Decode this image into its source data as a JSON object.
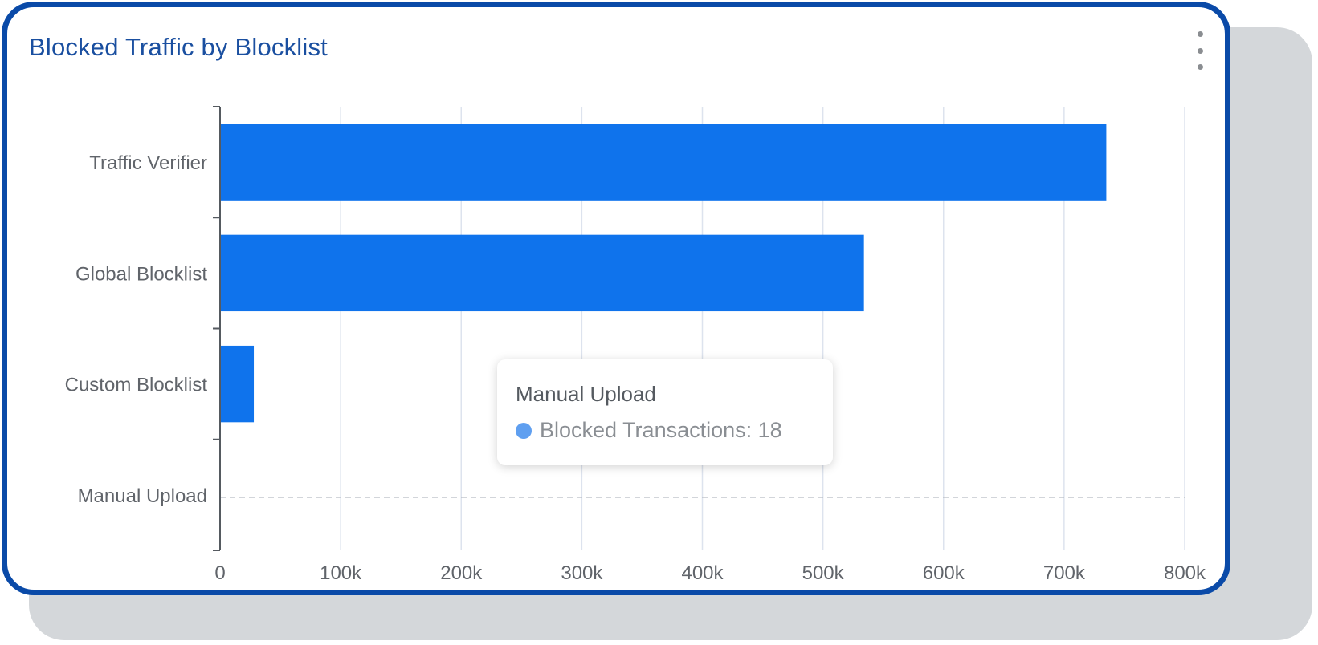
{
  "widget": {
    "title": "Blocked Traffic by Blocklist",
    "menu_icon": "kebab-vertical-icon"
  },
  "colors": {
    "title": "#1a4fa0",
    "border": "#0a4aa8",
    "bar": "#0f73ec",
    "tooltip_dot": "#5f9ff0",
    "grid": "#dde3ee",
    "axis": "#555a60",
    "label": "#60646a"
  },
  "chart_data": {
    "type": "bar",
    "orientation": "horizontal",
    "categories": [
      "Traffic Verifier",
      "Global Blocklist",
      "Custom Blocklist",
      "Manual Upload"
    ],
    "series": [
      {
        "name": "Blocked Transactions",
        "values": [
          735000,
          534000,
          28000,
          18
        ]
      }
    ],
    "xlim": [
      0,
      800000
    ],
    "x_ticks": [
      0,
      100000,
      200000,
      300000,
      400000,
      500000,
      600000,
      700000,
      800000
    ],
    "x_tick_labels": [
      "0",
      "100k",
      "200k",
      "300k",
      "400k",
      "500k",
      "600k",
      "700k",
      "800k"
    ],
    "grid": "vertical",
    "hovered_category": "Manual Upload"
  },
  "tooltip": {
    "title": "Manual Upload",
    "series_label": "Blocked Transactions: 18"
  }
}
